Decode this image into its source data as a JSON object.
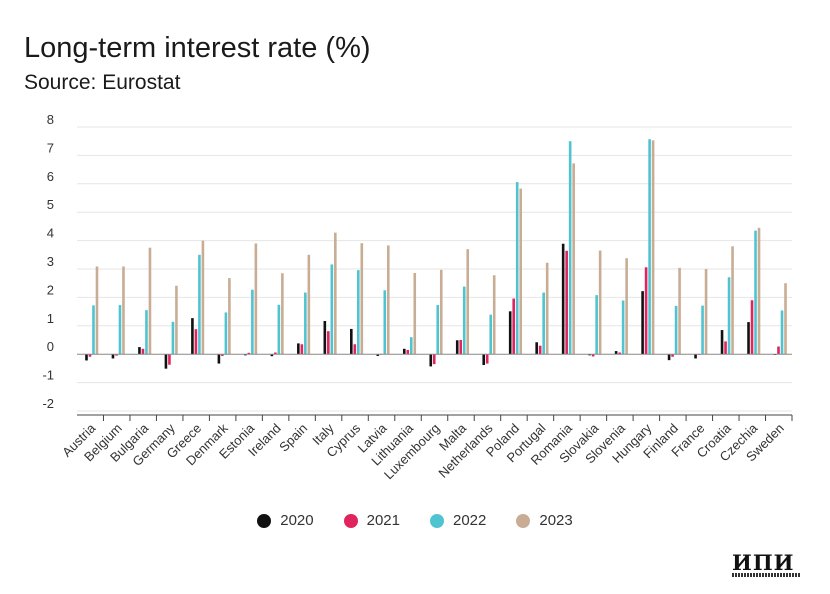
{
  "title": "Long-term interest rate (%)",
  "subtitle": "Source: Eurostat",
  "logo_text": "ИПИ",
  "chart_data": {
    "type": "bar",
    "title": "Long-term interest rate (%)",
    "subtitle": "Source: Eurostat",
    "xlabel": "",
    "ylabel": "",
    "ylim": [
      -2,
      8
    ],
    "yticks": [
      8,
      7,
      6,
      5,
      4,
      3,
      2,
      1,
      0,
      -1,
      -2
    ],
    "grid": true,
    "legend_position": "bottom",
    "categories": [
      "Austria",
      "Belgium",
      "Bulgaria",
      "Germany",
      "Greece",
      "Denmark",
      "Estonia",
      "Ireland",
      "Spain",
      "Italy",
      "Cyprus",
      "Latvia",
      "Lithuania",
      "Luxembourg",
      "Malta",
      "Netherlands",
      "Poland",
      "Portugal",
      "Romania",
      "Slovakia",
      "Slovenia",
      "Hungary",
      "Finland",
      "France",
      "Croatia",
      "Czechia",
      "Sweden"
    ],
    "series": [
      {
        "name": "2020",
        "color": "#111111",
        "values": [
          -0.22,
          -0.15,
          0.25,
          -0.51,
          1.27,
          -0.33,
          -0.04,
          -0.07,
          0.38,
          1.17,
          0.89,
          -0.06,
          0.19,
          -0.43,
          0.49,
          -0.38,
          1.51,
          0.42,
          3.89,
          -0.04,
          0.11,
          2.22,
          -0.21,
          -0.15,
          0.85,
          1.13,
          -0.02
        ]
      },
      {
        "name": "2021",
        "color": "#e0245e",
        "values": [
          -0.09,
          -0.05,
          0.19,
          -0.37,
          0.88,
          -0.06,
          0.05,
          0.06,
          0.35,
          0.81,
          0.35,
          0.01,
          0.15,
          -0.35,
          0.5,
          -0.33,
          1.96,
          0.3,
          3.64,
          -0.08,
          0.06,
          3.06,
          -0.09,
          0.01,
          0.45,
          1.9,
          0.27
        ]
      },
      {
        "name": "2022",
        "color": "#4fc4d0",
        "values": [
          1.72,
          1.73,
          1.55,
          1.14,
          3.5,
          1.47,
          2.27,
          1.74,
          2.17,
          3.16,
          2.96,
          2.25,
          0.6,
          1.73,
          2.38,
          1.39,
          6.06,
          2.17,
          7.5,
          2.08,
          1.89,
          7.57,
          1.7,
          1.71,
          2.71,
          4.35,
          1.54
        ]
      },
      {
        "name": "2023",
        "color": "#c8ad94",
        "values": [
          3.09,
          3.09,
          3.75,
          2.41,
          4.0,
          2.68,
          3.9,
          2.85,
          3.5,
          4.28,
          3.91,
          3.83,
          2.86,
          2.97,
          3.7,
          2.78,
          5.83,
          3.22,
          6.72,
          3.65,
          3.38,
          7.53,
          3.04,
          3.0,
          3.8,
          4.45,
          2.5
        ]
      }
    ]
  }
}
